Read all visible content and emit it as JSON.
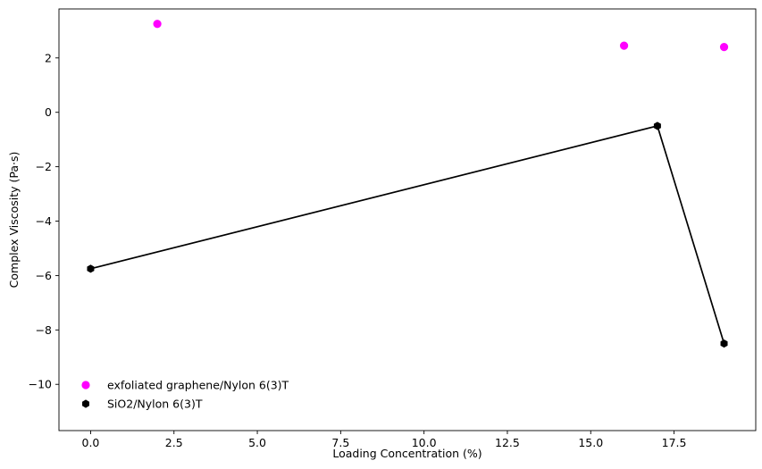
{
  "chart_data": {
    "type": "scatter",
    "title": "",
    "xlabel": "Loading Concentration (%)",
    "ylabel": "Complex Viscosity (Pa·s)",
    "xlim": [
      -0.95,
      19.95
    ],
    "ylim": [
      -11.7,
      3.8
    ],
    "xticks": [
      0.0,
      2.5,
      5.0,
      7.5,
      10.0,
      12.5,
      15.0,
      17.5
    ],
    "xtick_labels": [
      "0.0",
      "2.5",
      "5.0",
      "7.5",
      "10.0",
      "12.5",
      "15.0",
      "17.5"
    ],
    "yticks": [
      2,
      0,
      -2,
      -4,
      -6,
      -8,
      -10
    ],
    "ytick_labels": [
      "2",
      "0",
      "−2",
      "−4",
      "−6",
      "−8",
      "−10"
    ],
    "grid": false,
    "legend_position": "lower-left",
    "series": [
      {
        "name": "exfoliated graphene/Nylon 6(3)T",
        "marker": "circle",
        "line": false,
        "color": "#ff00ff",
        "x": [
          2,
          16,
          19
        ],
        "y": [
          3.25,
          2.45,
          2.4
        ]
      },
      {
        "name": "SiO2/Nylon 6(3)T",
        "marker": "hexagon",
        "line": true,
        "color": "#000000",
        "x": [
          0,
          17,
          19
        ],
        "y": [
          -5.75,
          -0.5,
          -8.5
        ]
      }
    ]
  }
}
